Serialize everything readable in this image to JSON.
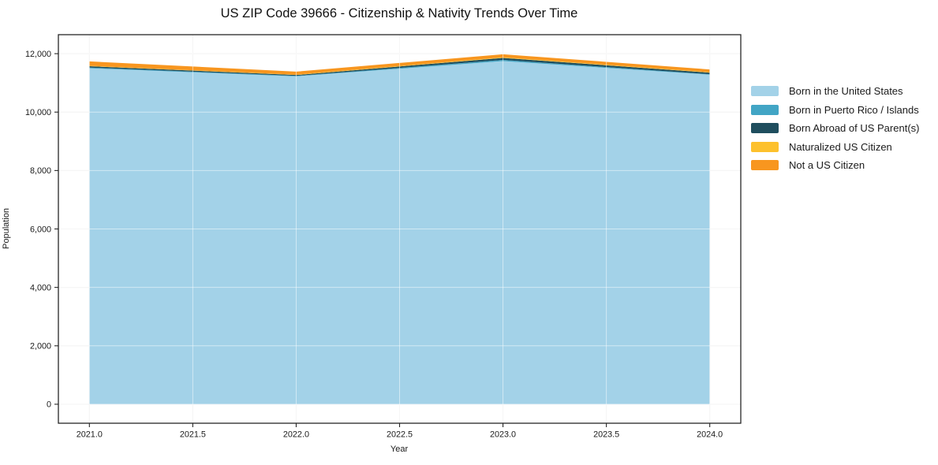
{
  "chart_data": {
    "type": "area",
    "stacked": true,
    "title": "US ZIP Code 39666 - Citizenship & Nativity Trends Over Time",
    "xlabel": "Year",
    "ylabel": "Population",
    "x": [
      2021,
      2022,
      2023,
      2024
    ],
    "series": [
      {
        "name": "Born in the United States",
        "color": "#a3d2e8",
        "values": [
          11500,
          11225,
          11745,
          11280
        ]
      },
      {
        "name": "Born in Puerto Rico / Islands",
        "color": "#42a5c5",
        "values": [
          25,
          15,
          40,
          18
        ]
      },
      {
        "name": "Born Abroad of US Parent(s)",
        "color": "#1f4e5e",
        "values": [
          45,
          30,
          70,
          52
        ]
      },
      {
        "name": "Naturalized US Citizen",
        "color": "#fdc12d",
        "values": [
          15,
          10,
          20,
          15
        ]
      },
      {
        "name": "Not a US Citizen",
        "color": "#f8961f",
        "values": [
          150,
          105,
          105,
          95
        ]
      }
    ],
    "xlim": [
      2020.85,
      2024.15
    ],
    "ylim": [
      -650,
      12650
    ],
    "xticks": {
      "values": [
        2021,
        2021.5,
        2022,
        2022.5,
        2023,
        2023.5,
        2024
      ],
      "labels": [
        "2021.0",
        "2021.5",
        "2022.0",
        "2022.5",
        "2023.0",
        "2023.5",
        "2024.0"
      ]
    },
    "yticks": {
      "values": [
        0,
        2000,
        4000,
        6000,
        8000,
        10000,
        12000
      ],
      "labels": [
        "0",
        "2,000",
        "4,000",
        "6,000",
        "8,000",
        "10,000",
        "12,000"
      ]
    },
    "grid": true,
    "legend_position": "right",
    "frame_color": "#262626",
    "grid_color": "#ececec",
    "tick_label_color": "#1a1a1a"
  }
}
